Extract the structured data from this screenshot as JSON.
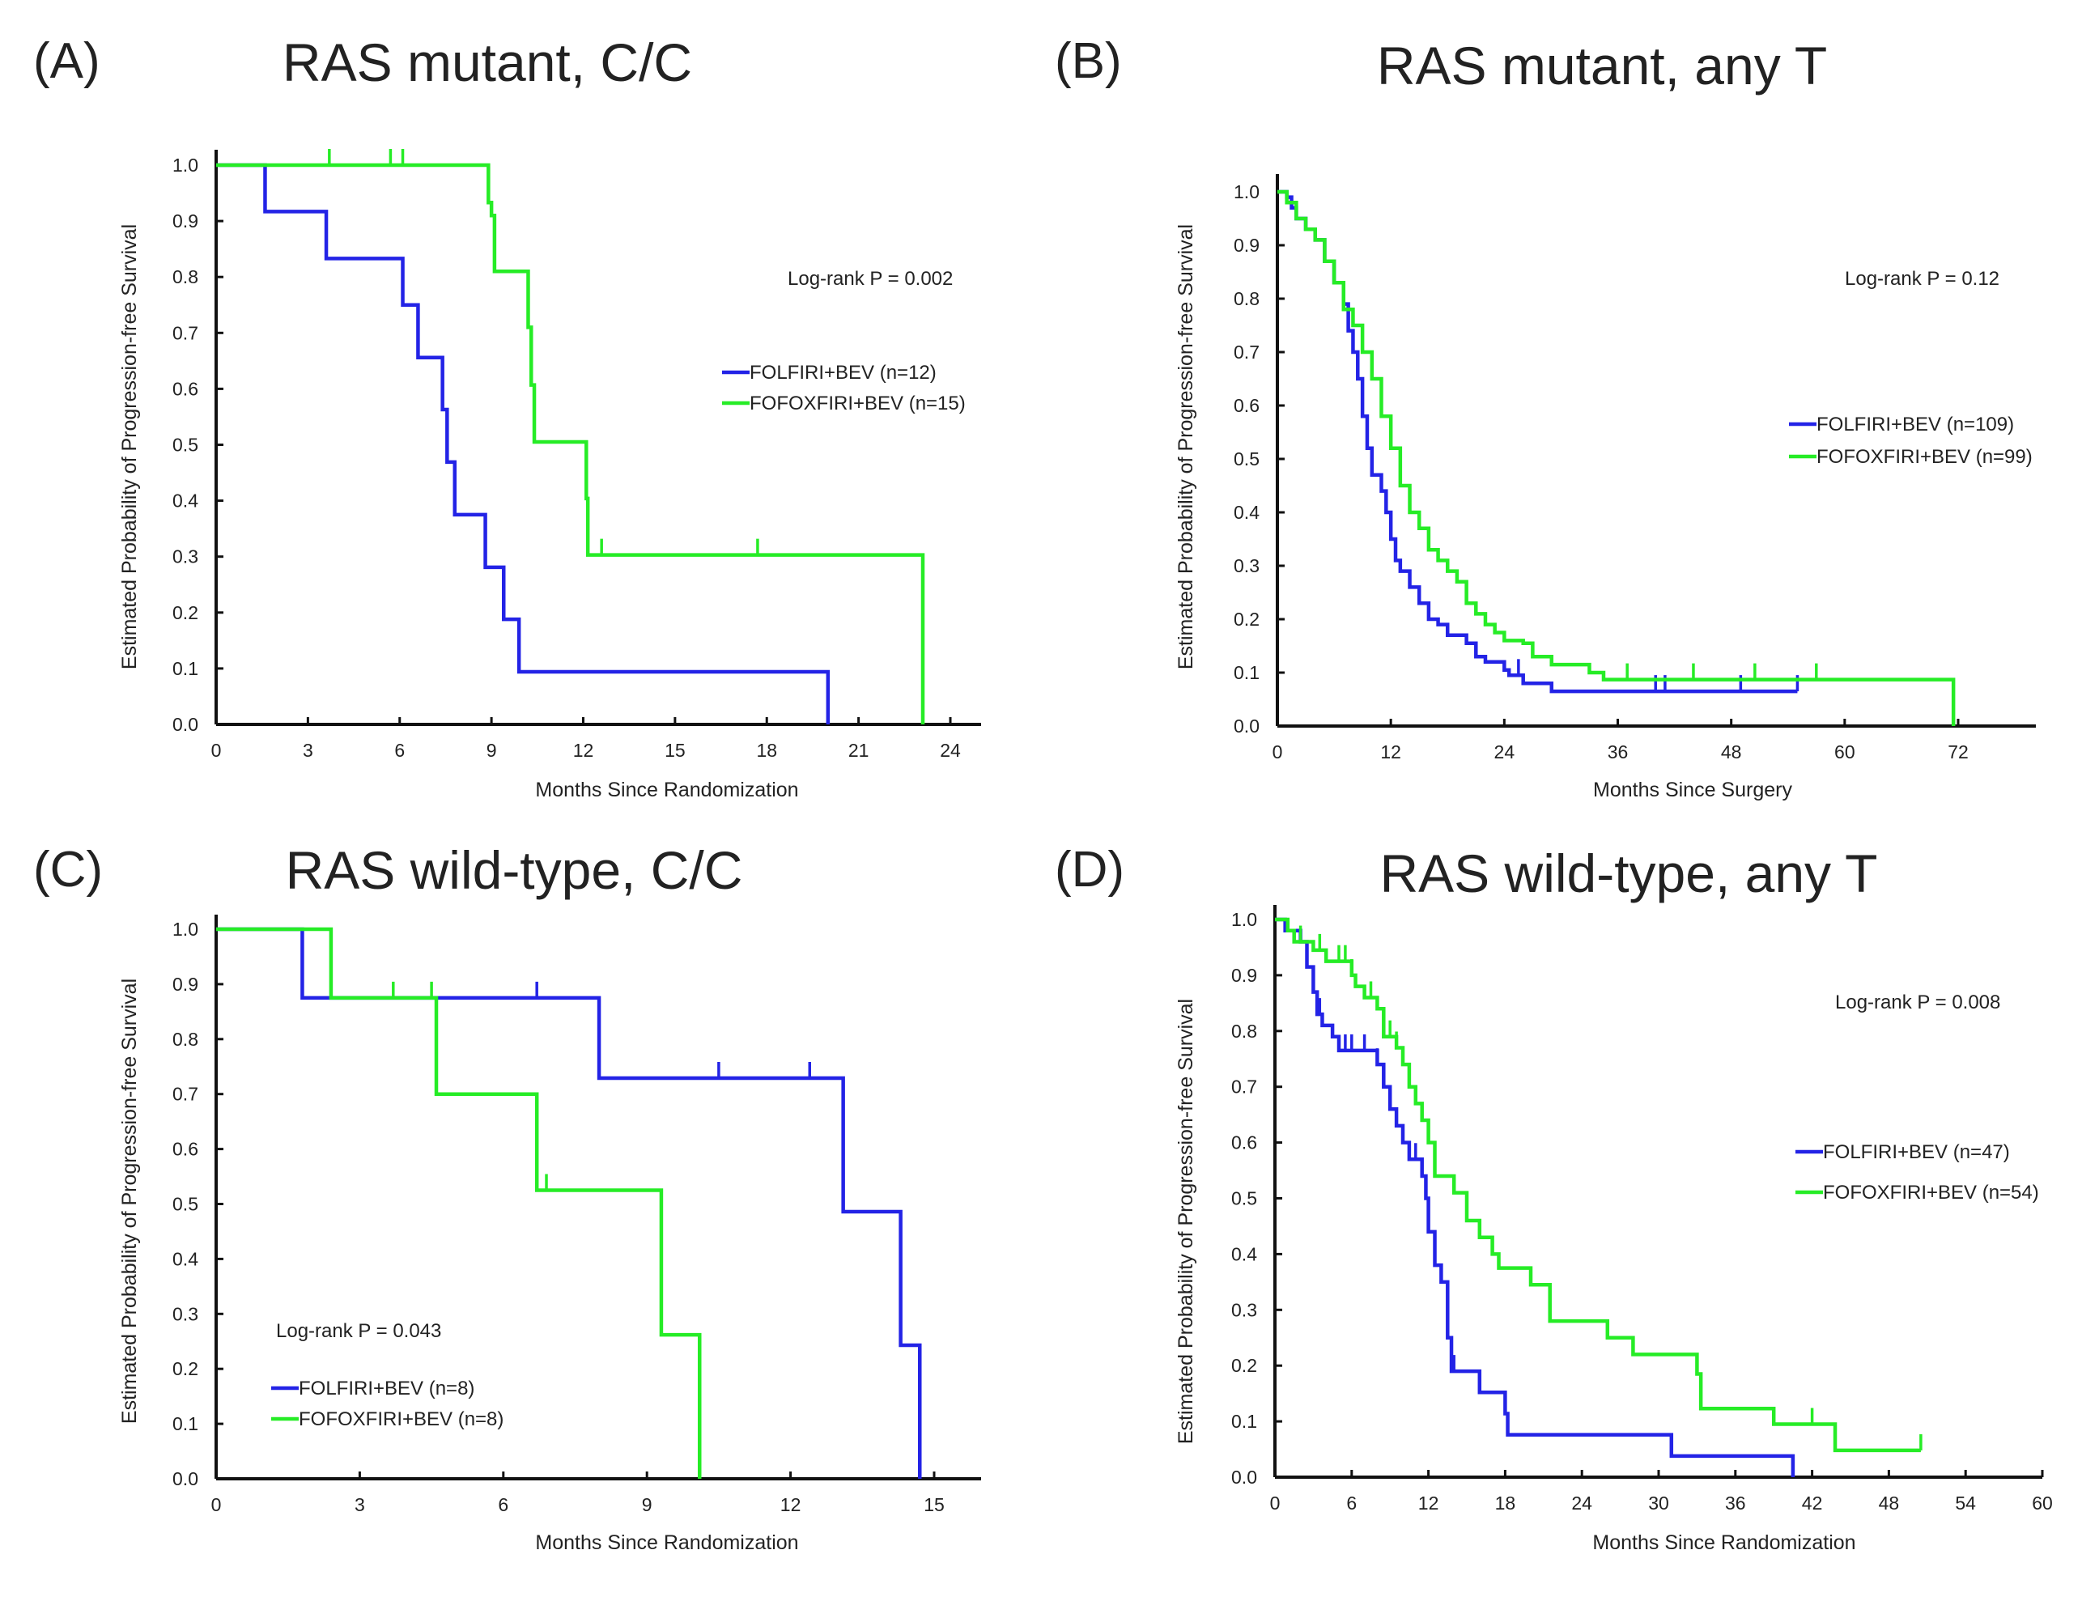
{
  "colors": {
    "folfiri": "#2323e6",
    "fofoxfiri": "#26ec26",
    "axis": "#111111"
  },
  "chart_data": [
    {
      "type": "line",
      "subtype": "kaplan-meier",
      "panel": "(A)",
      "title": "RAS mutant, C/C",
      "xlabel": "Months  Since  Randomization",
      "ylabel": "Estimated  Probability  of  Progression-free  Survival",
      "xlim": [
        0,
        25
      ],
      "ylim": [
        0,
        1.0
      ],
      "xticks": [
        "0",
        "3",
        "6",
        "9",
        "12",
        "15",
        "18",
        "21",
        "24"
      ],
      "yticks": [
        "0.0",
        "0.1",
        "0.2",
        "0.3",
        "0.4",
        "0.5",
        "0.6",
        "0.7",
        "0.8",
        "0.9",
        "1.0"
      ],
      "stat": "Log-rank P = 0.002",
      "legend_position": "right",
      "series": [
        {
          "name": "FOLFIRI+BEV (n=12)",
          "color_key": "folfiri",
          "steps": [
            [
              0,
              1
            ],
            [
              1.6,
              0.917
            ],
            [
              3.6,
              0.833
            ],
            [
              6.1,
              0.75
            ],
            [
              6.6,
              0.656
            ],
            [
              7.4,
              0.563
            ],
            [
              7.55,
              0.469
            ],
            [
              7.8,
              0.375
            ],
            [
              8.8,
              0.281
            ],
            [
              9.4,
              0.188
            ],
            [
              9.9,
              0.094
            ],
            [
              20.0,
              0
            ]
          ],
          "end": 20.0,
          "censored": []
        },
        {
          "name": "FOFOXFIRI+BEV (n=15)",
          "color_key": "fofoxfiri",
          "steps": [
            [
              0,
              1
            ],
            [
              8.9,
              0.933
            ],
            [
              9.0,
              0.91
            ],
            [
              9.1,
              0.81
            ],
            [
              10.2,
              0.71
            ],
            [
              10.3,
              0.607
            ],
            [
              10.4,
              0.505
            ],
            [
              12.1,
              0.404
            ],
            [
              12.15,
              0.303
            ],
            [
              23.1,
              0
            ]
          ],
          "end": 23.1,
          "censored": [
            3.7,
            5.7,
            6.1,
            12.6,
            17.7
          ]
        }
      ]
    },
    {
      "type": "line",
      "subtype": "kaplan-meier",
      "panel": "(B)",
      "title": "RAS mutant, any T",
      "xlabel": "Months  Since  Surgery",
      "ylabel": "Estimated  Probability  of  Progression-free  Survival",
      "xlim": [
        0,
        80
      ],
      "ylim": [
        0,
        1.0
      ],
      "xticks": [
        "0",
        "12",
        "24",
        "36",
        "48",
        "60",
        "72"
      ],
      "yticks": [
        "0.0",
        "0.1",
        "0.2",
        "0.3",
        "0.4",
        "0.5",
        "0.6",
        "0.7",
        "0.8",
        "0.9",
        "1.0"
      ],
      "stat": "Log-rank P = 0.12",
      "legend_position": "right",
      "series": [
        {
          "name": "FOLFIRI+BEV (n=109)",
          "color_key": "folfiri",
          "steps": [
            [
              0,
              1
            ],
            [
              1,
              0.99
            ],
            [
              1.5,
              0.97
            ],
            [
              2,
              0.95
            ],
            [
              3,
              0.93
            ],
            [
              4,
              0.91
            ],
            [
              5,
              0.87
            ],
            [
              6,
              0.83
            ],
            [
              7,
              0.79
            ],
            [
              7.5,
              0.74
            ],
            [
              8,
              0.7
            ],
            [
              8.5,
              0.65
            ],
            [
              9,
              0.58
            ],
            [
              9.5,
              0.52
            ],
            [
              10,
              0.47
            ],
            [
              11,
              0.44
            ],
            [
              11.5,
              0.4
            ],
            [
              12,
              0.35
            ],
            [
              12.5,
              0.31
            ],
            [
              13,
              0.29
            ],
            [
              14,
              0.26
            ],
            [
              15,
              0.23
            ],
            [
              16,
              0.2
            ],
            [
              17,
              0.19
            ],
            [
              18,
              0.17
            ],
            [
              20,
              0.155
            ],
            [
              21,
              0.13
            ],
            [
              22,
              0.12
            ],
            [
              24,
              0.105
            ],
            [
              24.5,
              0.095
            ],
            [
              26,
              0.08
            ],
            [
              29,
              0.065
            ]
          ],
          "end": 55,
          "censored": [
            25.5,
            40,
            41,
            49,
            55
          ]
        },
        {
          "name": "FOFOXFIRI+BEV (n=99)",
          "color_key": "fofoxfiri",
          "steps": [
            [
              0,
              1
            ],
            [
              1,
              0.98
            ],
            [
              2,
              0.95
            ],
            [
              3,
              0.93
            ],
            [
              4,
              0.91
            ],
            [
              5,
              0.87
            ],
            [
              6,
              0.83
            ],
            [
              7,
              0.78
            ],
            [
              8,
              0.75
            ],
            [
              9,
              0.7
            ],
            [
              10,
              0.65
            ],
            [
              11,
              0.58
            ],
            [
              12,
              0.52
            ],
            [
              13,
              0.45
            ],
            [
              14,
              0.4
            ],
            [
              15,
              0.37
            ],
            [
              16,
              0.33
            ],
            [
              17,
              0.31
            ],
            [
              18,
              0.29
            ],
            [
              19,
              0.27
            ],
            [
              20,
              0.23
            ],
            [
              21,
              0.21
            ],
            [
              22,
              0.19
            ],
            [
              23,
              0.175
            ],
            [
              24,
              0.16
            ],
            [
              26,
              0.155
            ],
            [
              27,
              0.13
            ],
            [
              29,
              0.115
            ],
            [
              33,
              0.1
            ],
            [
              34.5,
              0.087
            ],
            [
              71.5,
              0
            ]
          ],
          "end": 71.5,
          "censored": [
            37,
            44,
            50.5,
            57
          ]
        }
      ]
    },
    {
      "type": "line",
      "subtype": "kaplan-meier",
      "panel": "(C)",
      "title": "RAS wild-type, C/C",
      "xlabel": "Months  Since  Randomization",
      "ylabel": "Estimated  Probability  of  Progression-free  Survival",
      "xlim": [
        0,
        16
      ],
      "ylim": [
        0,
        1.0
      ],
      "xticks": [
        "0",
        "3",
        "6",
        "9",
        "12",
        "15"
      ],
      "yticks": [
        "0.0",
        "0.1",
        "0.2",
        "0.3",
        "0.4",
        "0.5",
        "0.6",
        "0.7",
        "0.8",
        "0.9",
        "1.0"
      ],
      "stat": "Log-rank P = 0.043",
      "legend_position": "bottom-left",
      "series": [
        {
          "name": "FOLFIRI+BEV (n=8)",
          "color_key": "folfiri",
          "steps": [
            [
              0,
              1
            ],
            [
              1.8,
              0.875
            ],
            [
              8.0,
              0.729
            ],
            [
              13.1,
              0.486
            ],
            [
              14.3,
              0.243
            ],
            [
              14.7,
              0
            ]
          ],
          "end": 14.7,
          "censored": [
            6.7,
            10.5,
            12.4
          ]
        },
        {
          "name": "FOFOXFIRI+BEV (n=8)",
          "color_key": "fofoxfiri",
          "steps": [
            [
              0,
              1
            ],
            [
              2.4,
              0.875
            ],
            [
              4.6,
              0.7
            ],
            [
              6.7,
              0.525
            ],
            [
              9.3,
              0.262
            ],
            [
              10.1,
              0
            ]
          ],
          "end": 10.1,
          "censored": [
            3.7,
            4.5,
            6.9
          ]
        }
      ]
    },
    {
      "type": "line",
      "subtype": "kaplan-meier",
      "panel": "(D)",
      "title": "RAS wild-type, any T",
      "xlabel": "Months  Since  Randomization",
      "ylabel": "Estimated  Probability  of  Progression-free  Survival",
      "xlim": [
        0,
        60
      ],
      "ylim": [
        0,
        1.0
      ],
      "xticks": [
        "0",
        "6",
        "12",
        "18",
        "24",
        "30",
        "36",
        "42",
        "48",
        "54",
        "60"
      ],
      "yticks": [
        "0.0",
        "0.1",
        "0.2",
        "0.3",
        "0.4",
        "0.5",
        "0.6",
        "0.7",
        "0.8",
        "0.9",
        "1.0"
      ],
      "stat": "Log-rank P = 0.008",
      "legend_position": "right",
      "series": [
        {
          "name": "FOLFIRI+BEV (n=47)",
          "color_key": "folfiri",
          "steps": [
            [
              0,
              1
            ],
            [
              0.8,
              0.98
            ],
            [
              2,
              0.96
            ],
            [
              2.5,
              0.915
            ],
            [
              3,
              0.87
            ],
            [
              3.3,
              0.83
            ],
            [
              3.7,
              0.81
            ],
            [
              4.5,
              0.79
            ],
            [
              5,
              0.765
            ],
            [
              8,
              0.74
            ],
            [
              8.5,
              0.7
            ],
            [
              9,
              0.66
            ],
            [
              9.5,
              0.63
            ],
            [
              10,
              0.6
            ],
            [
              10.5,
              0.57
            ],
            [
              11.5,
              0.54
            ],
            [
              11.8,
              0.5
            ],
            [
              12,
              0.44
            ],
            [
              12.5,
              0.38
            ],
            [
              13,
              0.35
            ],
            [
              13.5,
              0.25
            ],
            [
              13.8,
              0.19
            ],
            [
              16,
              0.152
            ],
            [
              18,
              0.114
            ],
            [
              18.2,
              0.076
            ],
            [
              31,
              0.038
            ],
            [
              40.5,
              0
            ]
          ],
          "end": 40.5,
          "censored": [
            3.5,
            5.5,
            6,
            7,
            8,
            9,
            10,
            11,
            14
          ]
        },
        {
          "name": "FOFOXFIRI+BEV (n=54)",
          "color_key": "fofoxfiri",
          "steps": [
            [
              0,
              1
            ],
            [
              1,
              0.98
            ],
            [
              1.5,
              0.96
            ],
            [
              3,
              0.945
            ],
            [
              4,
              0.925
            ],
            [
              6,
              0.9
            ],
            [
              6.3,
              0.88
            ],
            [
              7,
              0.86
            ],
            [
              8,
              0.84
            ],
            [
              8.5,
              0.79
            ],
            [
              9.5,
              0.77
            ],
            [
              10,
              0.74
            ],
            [
              10.5,
              0.7
            ],
            [
              11,
              0.67
            ],
            [
              11.5,
              0.64
            ],
            [
              12,
              0.6
            ],
            [
              12.5,
              0.54
            ],
            [
              14,
              0.51
            ],
            [
              15,
              0.46
            ],
            [
              16,
              0.43
            ],
            [
              17,
              0.4
            ],
            [
              17.5,
              0.375
            ],
            [
              20,
              0.345
            ],
            [
              21.5,
              0.28
            ],
            [
              26,
              0.25
            ],
            [
              28,
              0.22
            ],
            [
              33,
              0.185
            ],
            [
              33.3,
              0.123
            ],
            [
              39,
              0.095
            ],
            [
              43.8,
              0.048
            ]
          ],
          "end": 50.5,
          "censored": [
            2,
            3.5,
            5,
            5.5,
            6,
            7.5,
            9,
            9.5,
            11,
            15,
            17,
            42,
            50.5
          ]
        }
      ]
    }
  ]
}
